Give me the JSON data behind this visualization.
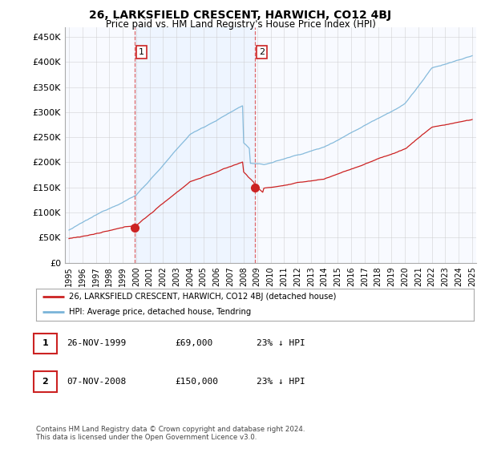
{
  "title": "26, LARKSFIELD CRESCENT, HARWICH, CO12 4BJ",
  "subtitle": "Price paid vs. HM Land Registry's House Price Index (HPI)",
  "ylabel_ticks": [
    "£0",
    "£50K",
    "£100K",
    "£150K",
    "£200K",
    "£250K",
    "£300K",
    "£350K",
    "£400K",
    "£450K"
  ],
  "ytick_values": [
    0,
    50000,
    100000,
    150000,
    200000,
    250000,
    300000,
    350000,
    400000,
    450000
  ],
  "ylim": [
    0,
    470000
  ],
  "xlim_start": 1994.7,
  "xlim_end": 2025.3,
  "sale1_date": 1999.9,
  "sale1_price": 69000,
  "sale2_date": 2008.85,
  "sale2_price": 150000,
  "hpi_color": "#7ab4d8",
  "price_color": "#cc2222",
  "vline_color": "#dd4444",
  "shade_color": "#ddeeff",
  "legend_label1": "26, LARKSFIELD CRESCENT, HARWICH, CO12 4BJ (detached house)",
  "legend_label2": "HPI: Average price, detached house, Tendring",
  "table_row1": [
    "1",
    "26-NOV-1999",
    "£69,000",
    "23% ↓ HPI"
  ],
  "table_row2": [
    "2",
    "07-NOV-2008",
    "£150,000",
    "23% ↓ HPI"
  ],
  "footnote": "Contains HM Land Registry data © Crown copyright and database right 2024.\nThis data is licensed under the Open Government Licence v3.0.",
  "background_color": "#ffffff",
  "grid_color": "#cccccc"
}
